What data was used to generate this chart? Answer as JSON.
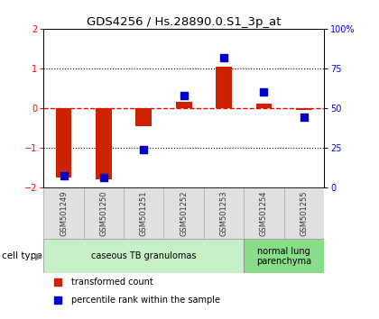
{
  "title": "GDS4256 / Hs.28890.0.S1_3p_at",
  "samples": [
    "GSM501249",
    "GSM501250",
    "GSM501251",
    "GSM501252",
    "GSM501253",
    "GSM501254",
    "GSM501255"
  ],
  "transformed_count": [
    -1.75,
    -1.8,
    -0.45,
    0.15,
    1.05,
    0.1,
    -0.05
  ],
  "percentile_rank": [
    7,
    6,
    24,
    58,
    82,
    60,
    44
  ],
  "ylim_left": [
    -2,
    2
  ],
  "ylim_right": [
    0,
    100
  ],
  "yticks_left": [
    -2,
    -1,
    0,
    1,
    2
  ],
  "yticks_right": [
    0,
    25,
    50,
    75,
    100
  ],
  "ytick_labels_right": [
    "0",
    "25",
    "50",
    "75",
    "100%"
  ],
  "hlines": [
    -1,
    0,
    1
  ],
  "hline_styles": [
    "dotted",
    "dashed",
    "dotted"
  ],
  "hline_colors": [
    "black",
    "red",
    "black"
  ],
  "bar_color": "#cc2200",
  "square_color": "#0000cc",
  "bar_width": 0.4,
  "square_size": 35,
  "groups": [
    {
      "label": "caseous TB granulomas",
      "indices": [
        0,
        1,
        2,
        3,
        4
      ],
      "color": "#c8f0c8"
    },
    {
      "label": "normal lung\nparenchyma",
      "indices": [
        5,
        6
      ],
      "color": "#88dd88"
    }
  ],
  "cell_type_label": "cell type",
  "legend_red": "transformed count",
  "legend_blue": "percentile rank within the sample",
  "background_color": "#ffffff",
  "plot_bg": "#ffffff"
}
